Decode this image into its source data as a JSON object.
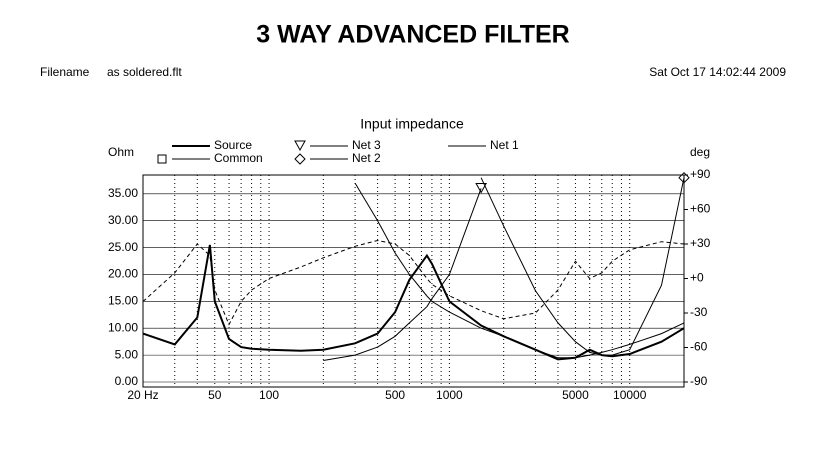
{
  "chart_data": {
    "type": "line",
    "title": "3 WAY ADVANCED FILTER",
    "filename_label": "Filename",
    "filename": "as soldered.flt",
    "date": "Sat Oct 17 14:02:44 2009",
    "subtitle": "Input impedance",
    "y_label": "Ohm",
    "y2_label": "deg",
    "log_x": true,
    "grid": true,
    "xlim": [
      20,
      20000
    ],
    "xticks": [
      {
        "value": 20,
        "label": "20 Hz"
      },
      50,
      100,
      500,
      1000,
      5000,
      10000
    ],
    "xgrid": [
      30,
      40,
      60,
      70,
      80,
      90,
      200,
      300,
      400,
      600,
      700,
      800,
      900,
      2000,
      3000,
      4000,
      6000,
      7000,
      8000,
      9000
    ],
    "ylim": [
      0,
      38.5
    ],
    "yticks": [
      {
        "value": 0,
        "label": "0.00"
      },
      {
        "value": 5,
        "label": "5.00"
      },
      {
        "value": 10,
        "label": "10.00"
      },
      {
        "value": 15,
        "label": "15.00"
      },
      {
        "value": 20,
        "label": "20.00"
      },
      {
        "value": 25,
        "label": "25.00"
      },
      {
        "value": 30,
        "label": "30.00"
      },
      {
        "value": 35,
        "label": "35.00"
      }
    ],
    "y2lim": [
      -90,
      90
    ],
    "y2ticks": [
      -90,
      -60,
      -30,
      {
        "value": 0,
        "label": "+0"
      },
      {
        "value": 30,
        "label": "+30"
      },
      {
        "value": 60,
        "label": "+60"
      },
      {
        "value": 90,
        "label": "+90"
      }
    ],
    "x": [
      20,
      30,
      40,
      47,
      50,
      60,
      70,
      80,
      100,
      150,
      200,
      300,
      400,
      500,
      600,
      750,
      800,
      1000,
      1500,
      2000,
      3000,
      4000,
      5000,
      6000,
      7000,
      8000,
      10000,
      15000,
      20000
    ],
    "series": [
      {
        "name": "Source",
        "color": "#000000",
        "width": 2,
        "values": [
          9,
          7,
          12,
          25.5,
          15,
          8,
          6.5,
          6.2,
          6,
          5.8,
          6,
          7.2,
          9,
          13,
          19,
          23.5,
          22,
          15,
          10.5,
          8.5,
          6,
          4.2,
          4.5,
          6,
          5,
          4.8,
          5.2,
          7.5,
          10
        ]
      },
      {
        "name": "Common",
        "color": "#000000",
        "width": 1,
        "dash": true,
        "marker": "square",
        "axis": "y2",
        "values": [
          -20,
          5,
          30,
          20,
          -10,
          -40,
          -20,
          -10,
          0,
          10,
          18,
          28,
          33,
          30,
          20,
          0,
          -5,
          -15,
          -28,
          -35,
          -30,
          -10,
          15,
          0,
          5,
          15,
          25,
          32,
          30
        ]
      },
      {
        "name": "Net 3",
        "color": "#000000",
        "width": 1,
        "marker": "triangle",
        "values": [
          null,
          null,
          null,
          null,
          null,
          null,
          null,
          null,
          null,
          null,
          4,
          5,
          6.5,
          8.5,
          11,
          14,
          15.5,
          20,
          36,
          null,
          null,
          null,
          null,
          null,
          null,
          null,
          null,
          null,
          null
        ]
      },
      {
        "name": "Net 2",
        "color": "#000000",
        "width": 1,
        "marker": "diamond",
        "values": [
          null,
          null,
          null,
          null,
          null,
          null,
          null,
          null,
          null,
          null,
          null,
          null,
          null,
          null,
          null,
          null,
          null,
          null,
          38,
          29,
          17,
          11,
          7.5,
          5.5,
          5,
          5,
          6,
          18,
          38
        ]
      },
      {
        "name": "Net 1",
        "color": "#000000",
        "width": 1,
        "values": [
          null,
          null,
          null,
          null,
          null,
          null,
          null,
          null,
          null,
          null,
          null,
          37,
          30,
          24,
          20,
          16,
          15,
          13,
          10,
          8.5,
          6,
          4.5,
          4.5,
          5,
          5.5,
          6,
          7,
          9,
          11
        ]
      }
    ]
  }
}
